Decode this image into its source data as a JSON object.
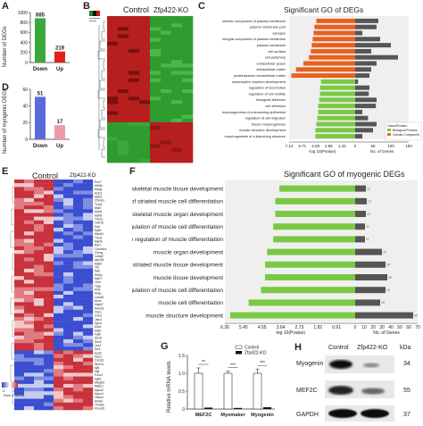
{
  "panel_labels": {
    "A": "A",
    "B": "B",
    "C": "C",
    "D": "D",
    "E": "E",
    "F": "F",
    "G": "G",
    "H": "H"
  },
  "chart_data": [
    {
      "id": "A",
      "type": "bar",
      "categories": [
        "Down",
        "Up"
      ],
      "values": [
        885,
        219
      ],
      "ylabel": "Number of DEGs",
      "ylim": [
        0,
        1000
      ],
      "yticks": [
        0,
        200,
        400,
        600,
        800,
        1000
      ],
      "colors": [
        "#3aa83a",
        "#e0201b"
      ]
    },
    {
      "id": "D",
      "type": "bar",
      "categories": [
        "Down",
        "Up"
      ],
      "values": [
        51,
        17
      ],
      "ylabel": "Number of myogenic DEGs",
      "ylim": [
        0,
        60
      ],
      "yticks": [
        0,
        20,
        40,
        60
      ],
      "colors": [
        "#5b6bdc",
        "#ef9aa8"
      ]
    },
    {
      "id": "C",
      "type": "bar",
      "title": "Significant GO of DEGs",
      "xlabel_left": "-log 10(Pvalue)",
      "xlabel_right": "No. of Genes",
      "left_ticks": [
        "7.14",
        "5.71",
        "4.29",
        "2.86",
        "1.43"
      ],
      "right_ticks": [
        "0",
        "50",
        "100",
        "150"
      ],
      "terms": [
        "intrinsic component of plasma membrane",
        "plasma membrane part",
        "synapse",
        "integral component of plasma membrane",
        "plasma membrane",
        "cell surface",
        "cell periphery",
        "extracellular space",
        "extracellular matrix",
        "proteinaceous extracellular matrix",
        "metanephric nephron development",
        "regulation of locomotion",
        "regulation of cell motility",
        "biological adhesion",
        "cell adhesion",
        "morphogenesis of a branching epithelium",
        "regulation of cell migration",
        "tissue morphogenesis",
        "muscle structure development",
        "morphogenesis of a branching structure"
      ],
      "classes": [
        "C",
        "C",
        "C",
        "C",
        "C",
        "C",
        "C",
        "C",
        "C",
        "C",
        "B",
        "B",
        "B",
        "B",
        "B",
        "B",
        "B",
        "B",
        "B",
        "B"
      ],
      "neglog10p": [
        4.2,
        4.4,
        4.5,
        4.6,
        4.7,
        4.8,
        5.0,
        5.6,
        6.4,
        6.9,
        3.7,
        3.8,
        3.8,
        3.9,
        4.0,
        4.0,
        4.1,
        4.2,
        4.3,
        4.3
      ],
      "gene_counts": [
        65,
        60,
        20,
        70,
        100,
        45,
        120,
        60,
        45,
        40,
        8,
        40,
        38,
        60,
        58,
        20,
        36,
        60,
        50,
        20
      ],
      "legend_title": "Class/Rootion",
      "legend": [
        "Biological Process",
        "Cellular Component"
      ],
      "colors": {
        "B": "#7ac943",
        "C": "#e8601c",
        "count": "#555555"
      }
    },
    {
      "id": "F",
      "type": "bar",
      "title": "Significant GO of myogenic DEGs",
      "xlabel_left": "-log 10(Pvalue)",
      "xlabel_right": "No. of Genes",
      "left_ticks": [
        "6.36",
        "5.45",
        "4.55",
        "3.64",
        "2.73",
        "1.82",
        "0.91"
      ],
      "right_ticks": [
        "0",
        "10",
        "20",
        "30",
        "40",
        "50",
        "60",
        "70"
      ],
      "terms": [
        "skeletal muscle tissue development",
        "regulation of striated muscle cell differentiation",
        "skeletal muscle organ development",
        "positive regulation of muscle cell differentiation",
        "positive regulation of muscle differentiation",
        "muscle organ development",
        "striated muscle tissue development",
        "muscle tissue development",
        "regulation of muscle cell differentiation",
        "muscle cell differentiation",
        "muscle structure development"
      ],
      "neglog10p": [
        3.7,
        3.9,
        3.9,
        4.0,
        4.0,
        4.3,
        4.4,
        4.4,
        4.6,
        5.2,
        6.1
      ],
      "gene_counts": [
        12,
        13,
        12,
        11,
        11,
        30,
        34,
        36,
        34,
        28,
        65
      ],
      "count_labels": [
        "12",
        "13",
        "12",
        "11",
        "11",
        "30",
        "34",
        "36",
        "34",
        "28",
        "65"
      ],
      "colors": {
        "p": "#7ac943",
        "count": "#555555"
      }
    },
    {
      "id": "G",
      "type": "bar",
      "categories": [
        "MEF2C",
        "Myomaker",
        "Myogenin"
      ],
      "series": [
        {
          "name": "Control",
          "values": [
            1.0,
            1.0,
            1.0
          ],
          "errors": [
            0.15,
            0.06,
            0.12
          ]
        },
        {
          "name": "Zfp422-KO",
          "values": [
            0.04,
            0.03,
            0.05
          ],
          "errors": [
            0.01,
            0.01,
            0.01
          ]
        }
      ],
      "ylabel": "Relative mRNA levels",
      "ylim": [
        0,
        1.5
      ],
      "yticks": [
        "0",
        "0.5",
        "1.0",
        "1.5"
      ],
      "significance": [
        "**",
        "***",
        "***"
      ]
    }
  ],
  "panelB": {
    "control": "Control",
    "ko": "Zfp422-KO"
  },
  "panelE": {
    "control": "Control",
    "ko": "Zfp422-KO",
    "genes": [
      "Pax7",
      "Mef2c",
      "Myog",
      "Actc1",
      "Myh3",
      "Chrna1",
      "Tnnt1",
      "Myl4",
      "Acta1",
      "Myh8",
      "Tnnc1",
      "Cdh15",
      "Des",
      "Myf5",
      "Myod1",
      "Tnni1",
      "Mymk",
      "Ryr1",
      "Cacna1s",
      "Chrng",
      "Casq2",
      "Atp2a1",
      "Mylpf",
      "Ttn",
      "Neb",
      "Smpx",
      "Myh7",
      "Ckm",
      "Tcap",
      "Fhl1",
      "Nrap",
      "Lmod2",
      "Murc",
      "Hspb7",
      "Ankrd1",
      "Xirp1",
      "Cav3",
      "Jsrp1",
      "Sgca",
      "Dmd",
      "Mstn",
      "Fgf6",
      "Sox8",
      "Sim2",
      "Lbx1",
      "Six1",
      "Eya2",
      "Gpc1",
      "Cxcl12",
      "Wnt7a",
      "Igf1",
      "Hgf",
      "Foxc1",
      "Itgb1",
      "Megf10",
      "Nfatc2",
      "Myoz2",
      "Myoz1",
      "Obscn",
      "Klhl41",
      "Trim63",
      "Fbxo32"
    ],
    "legend_min": "-2",
    "legend_max": "2",
    "legend_caption": "Row Z-Score"
  },
  "panelH": {
    "control": "Control",
    "ko": "Zfp422-KO",
    "unit": "kDa",
    "proteins": [
      "Myogenin",
      "MEF2C",
      "GAPDH"
    ],
    "kda": [
      "34",
      "55",
      "37"
    ]
  }
}
